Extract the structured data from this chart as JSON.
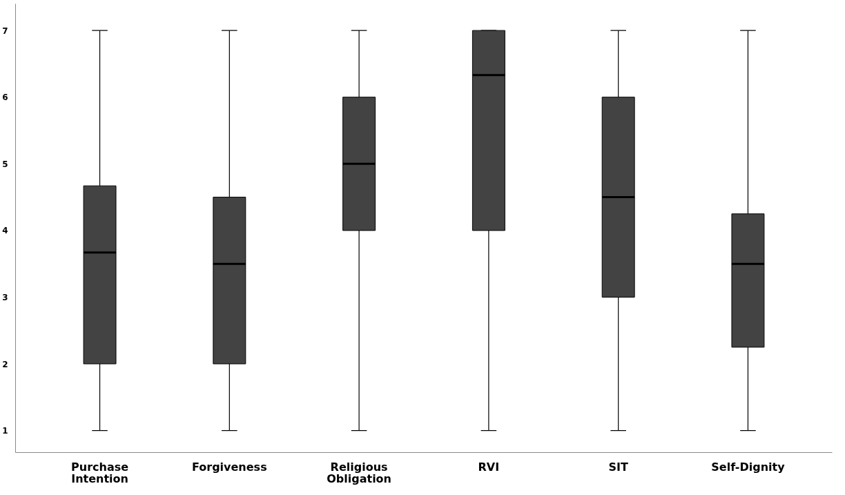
{
  "chart_data": {
    "type": "box",
    "categories": [
      "Purchase\nIntention",
      "Forgiveness",
      "Religious\nObligation",
      "RVI",
      "SIT",
      "Self-Dignity"
    ],
    "boxes": [
      {
        "low": 1,
        "q1": 2,
        "median": 3.67,
        "q3": 4.67,
        "high": 7
      },
      {
        "low": 1,
        "q1": 2,
        "median": 3.5,
        "q3": 4.5,
        "high": 7
      },
      {
        "low": 1,
        "q1": 4,
        "median": 5,
        "q3": 6,
        "high": 7
      },
      {
        "low": 1,
        "q1": 4,
        "median": 6.33,
        "q3": 7,
        "high": 7
      },
      {
        "low": 1,
        "q1": 3,
        "median": 4.5,
        "q3": 6,
        "high": 7
      },
      {
        "low": 1,
        "q1": 2.25,
        "median": 3.5,
        "q3": 4.25,
        "high": 7
      }
    ],
    "color": "#434344",
    "ylim": [
      0.67,
      7.4
    ],
    "yticks": [
      1,
      2,
      3,
      4,
      5,
      6,
      7
    ],
    "grid": false
  }
}
